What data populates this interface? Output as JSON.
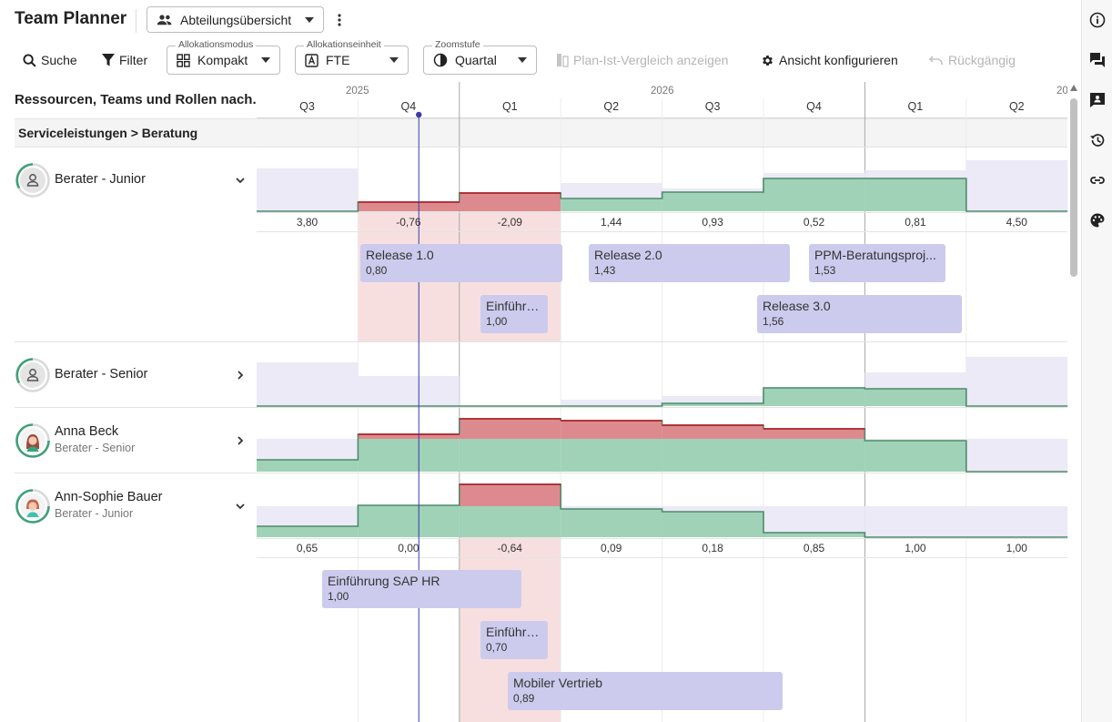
{
  "header": {
    "title": "Team Planner",
    "view_select": "Abteilungsübersicht"
  },
  "toolbar": {
    "search": "Suche",
    "filter": "Filter",
    "allocation_mode": {
      "legend": "Allokationsmodus",
      "value": "Kompakt"
    },
    "allocation_unit": {
      "legend": "Allokationseinheit",
      "value": "FTE"
    },
    "zoom": {
      "legend": "Zoomstufe",
      "value": "Quartal"
    },
    "plan_actual": "Plan-Ist-Vergleich anzeigen",
    "configure": "Ansicht konfigurieren",
    "undo": "Rückgängig"
  },
  "left_panel": {
    "header": "Ressourcen, Teams und Rollen nach..."
  },
  "group": {
    "label": "Serviceleistungen > Beratung"
  },
  "timeline": {
    "years": [
      {
        "label": "2025"
      },
      {
        "label": "2026"
      },
      {
        "label": "20"
      }
    ],
    "quarters": [
      "Q3",
      "Q4",
      "Q1",
      "Q2",
      "Q3",
      "Q4",
      "Q1",
      "Q2"
    ],
    "today_quarter_fraction": 1.6
  },
  "resources": [
    {
      "name": "Berater - Junior",
      "subtitle": "",
      "type": "role",
      "expanded": true,
      "values": [
        "3,80",
        "-0,76",
        "-2,09",
        "1,44",
        "0,93",
        "0,52",
        "0,81",
        "4,50"
      ],
      "bars": [
        {
          "name": "Release 1.0",
          "value": "0,80"
        },
        {
          "name": "Release 2.0",
          "value": "1,43"
        },
        {
          "name": "PPM-Beratungsproj...",
          "value": "1,53"
        },
        {
          "name": "Einführu...",
          "value": "1,00"
        },
        {
          "name": "Release 3.0",
          "value": "1,56"
        }
      ]
    },
    {
      "name": "Berater - Senior",
      "subtitle": "",
      "type": "role",
      "expanded": false
    },
    {
      "name": "Anna Beck",
      "subtitle": "Berater - Senior",
      "type": "person",
      "expanded": false
    },
    {
      "name": "Ann-Sophie Bauer",
      "subtitle": "Berater - Junior",
      "type": "person",
      "expanded": true,
      "values": [
        "0,65",
        "0,00",
        "-0,64",
        "0,09",
        "0,18",
        "0,85",
        "1,00",
        "1,00"
      ],
      "bars": [
        {
          "name": "Einführung SAP HR",
          "value": "1,00"
        },
        {
          "name": "Einführu...",
          "value": "0,70"
        },
        {
          "name": "Mobiler Vertrieb",
          "value": "0,89"
        }
      ]
    }
  ],
  "colors": {
    "capacity": "#ebeaf6",
    "allocated": "#9fd2b7",
    "allocated_line": "#4f8a6c",
    "overbooked": "#dd8a8e",
    "overbooked_line": "#b3262d",
    "overbooked_bg": "#f7dfe0",
    "bar": "#cccbed",
    "today_line": "#3b3ba8"
  }
}
